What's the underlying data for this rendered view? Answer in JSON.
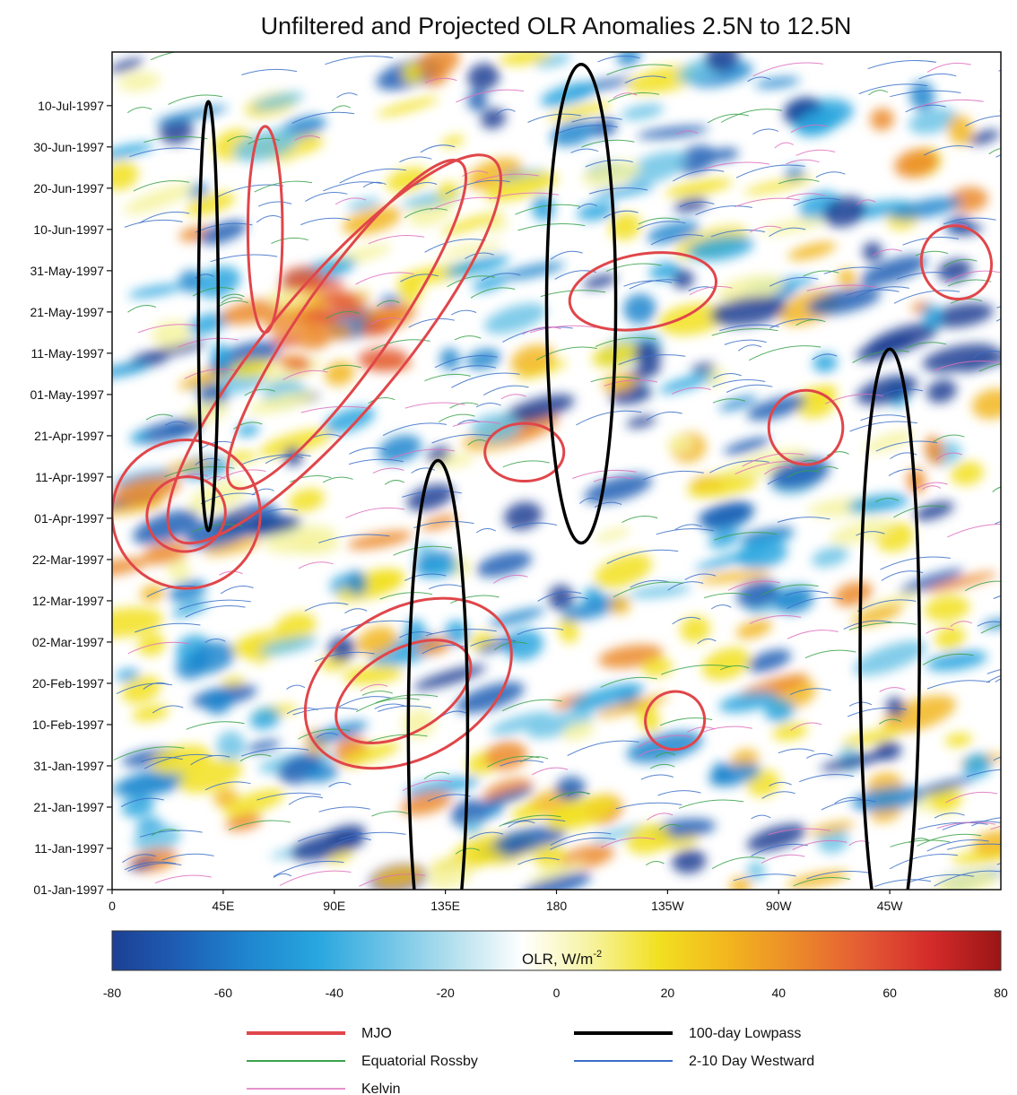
{
  "chart_data": {
    "type": "heatmap",
    "title": "Unfiltered and Projected OLR Anomalies 2.5N to 12.5N",
    "xlabel": "",
    "ylabel": "",
    "x_ticks": [
      "0",
      "45E",
      "90E",
      "135E",
      "180",
      "135W",
      "90W",
      "45W"
    ],
    "x_tick_values": [
      0,
      45,
      90,
      135,
      180,
      225,
      270,
      315
    ],
    "xlim": [
      0,
      360
    ],
    "y_ticks": [
      "01-Jan-1997",
      "11-Jan-1997",
      "21-Jan-1997",
      "31-Jan-1997",
      "10-Feb-1997",
      "20-Feb-1997",
      "02-Mar-1997",
      "12-Mar-1997",
      "22-Mar-1997",
      "01-Apr-1997",
      "11-Apr-1997",
      "21-Apr-1997",
      "01-May-1997",
      "11-May-1997",
      "21-May-1997",
      "31-May-1997",
      "10-Jun-1997",
      "20-Jun-1997",
      "30-Jun-1997",
      "10-Jul-1997"
    ],
    "ylim": [
      "01-Jan-1997",
      "23-Jul-1997"
    ],
    "colorbar": {
      "label": "OLR, W/m",
      "label_sup": "-2",
      "ticks": [
        "-80",
        "-60",
        "-40",
        "-20",
        "0",
        "20",
        "40",
        "60",
        "80"
      ],
      "range": [
        -80,
        80
      ],
      "colors": [
        "#1c3f94",
        "#1e5fb5",
        "#1f86cf",
        "#28a6df",
        "#6cc3e6",
        "#b5e0ee",
        "#ffffff",
        "#f6f3a0",
        "#f2e020",
        "#f2b61e",
        "#ec8a2a",
        "#e45a35",
        "#d42a2a",
        "#9a1515"
      ]
    },
    "legend": {
      "placement": "bottom",
      "entries": [
        {
          "name": "MJO",
          "color": "#e0464a",
          "width": 4
        },
        {
          "name": "Equatorial Rossby",
          "color": "#3aa24a",
          "width": 2
        },
        {
          "name": "Kelvin",
          "color": "#de6fbd",
          "width": 1.5
        },
        {
          "name": "100-day Lowpass",
          "color": "#000000",
          "width": 4
        },
        {
          "name": "2-10 Day Westward",
          "color": "#3a6fc8",
          "width": 2
        }
      ]
    },
    "features": {
      "mjo_contours": [
        {
          "lon": 62,
          "date": "1997-06-10",
          "rx": 7,
          "ry": 25,
          "rot": 0
        },
        {
          "lon": 95,
          "date": "1997-05-18",
          "rx": 18,
          "ry": 48,
          "rot": 35
        },
        {
          "lon": 90,
          "date": "1997-05-12",
          "rx": 26,
          "ry": 60,
          "rot": 40
        },
        {
          "lon": 30,
          "date": "1997-04-02",
          "rx": 30,
          "ry": 18,
          "rot": -20
        },
        {
          "lon": 30,
          "date": "1997-04-02",
          "rx": 16,
          "ry": 9,
          "rot": -20
        },
        {
          "lon": 120,
          "date": "1997-02-20",
          "rx": 45,
          "ry": 18,
          "rot": -30
        },
        {
          "lon": 118,
          "date": "1997-02-18",
          "rx": 30,
          "ry": 10,
          "rot": -30
        },
        {
          "lon": 167,
          "date": "1997-04-17",
          "rx": 16,
          "ry": 7,
          "rot": 0
        },
        {
          "lon": 215,
          "date": "1997-05-26",
          "rx": 30,
          "ry": 9,
          "rot": -10
        },
        {
          "lon": 281,
          "date": "1997-04-23",
          "rx": 15,
          "ry": 9,
          "rot": 0
        },
        {
          "lon": 228,
          "date": "1997-02-11",
          "rx": 12,
          "ry": 7,
          "rot": -20
        },
        {
          "lon": 342,
          "date": "1997-06-02",
          "rx": 14,
          "ry": 9,
          "rot": -25
        }
      ],
      "lowpass_contours": [
        {
          "lon": 39,
          "date": "1997-05-20",
          "rx": 4,
          "ry": 52
        },
        {
          "lon": 190,
          "date": "1997-05-23",
          "rx": 14,
          "ry": 58
        },
        {
          "lon": 132,
          "date": "1997-02-09",
          "rx": 12,
          "ry": 65
        },
        {
          "lon": 315,
          "date": "1997-02-28",
          "rx": 12,
          "ry": 73
        }
      ]
    }
  }
}
